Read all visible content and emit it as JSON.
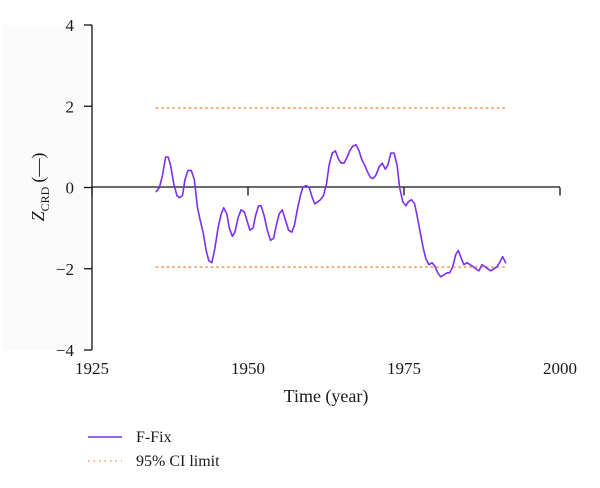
{
  "chart_data": {
    "type": "line",
    "xlabel": "Time (year)",
    "ylabel_main": "Z",
    "ylabel_sub": "CRD",
    "ylabel_unit": "(—)",
    "xlim": [
      1925,
      2000
    ],
    "ylim": [
      -4,
      4
    ],
    "xticks": [
      1925,
      1950,
      1975,
      2000
    ],
    "yticks": [
      4,
      2,
      0,
      -2,
      -4
    ],
    "grid": false,
    "legend_position": "bottom-left",
    "series": [
      {
        "name": "F-Fix",
        "color": "#7b2ff2",
        "style": "solid",
        "x": [
          1935.3,
          1935.8,
          1936.3,
          1936.8,
          1937.2,
          1937.6,
          1938.1,
          1938.6,
          1939.0,
          1939.5,
          1939.9,
          1940.4,
          1940.9,
          1941.4,
          1941.9,
          1942.4,
          1942.8,
          1943.3,
          1943.7,
          1944.2,
          1944.7,
          1945.2,
          1945.7,
          1946.1,
          1946.6,
          1947.0,
          1947.5,
          1947.9,
          1948.4,
          1948.9,
          1949.4,
          1949.9,
          1950.3,
          1950.8,
          1951.2,
          1951.7,
          1952.1,
          1952.6,
          1953.1,
          1953.6,
          1954.1,
          1954.5,
          1955.0,
          1955.5,
          1956.0,
          1956.5,
          1957.0,
          1957.4,
          1957.9,
          1958.4,
          1958.8,
          1959.3,
          1959.8,
          1960.3,
          1960.7,
          1961.2,
          1961.6,
          1962.1,
          1962.6,
          1963.0,
          1963.5,
          1964.0,
          1964.5,
          1964.9,
          1965.4,
          1965.8,
          1966.3,
          1966.8,
          1967.3,
          1967.8,
          1968.2,
          1968.7,
          1969.1,
          1969.6,
          1970.0,
          1970.5,
          1971.0,
          1971.5,
          1972.0,
          1972.4,
          1972.9,
          1973.4,
          1973.9,
          1974.3,
          1974.8,
          1975.3,
          1975.7,
          1976.2,
          1976.7,
          1977.1,
          1977.6,
          1978.1,
          1978.5,
          1979.0,
          1979.5,
          1980.0,
          1980.4,
          1980.9,
          1981.4,
          1981.9,
          1982.3,
          1982.8,
          1983.3,
          1983.7,
          1984.2,
          1984.6,
          1985.1,
          1985.6,
          1986.1,
          1986.5,
          1987.0,
          1987.5,
          1988.0,
          1988.4,
          1988.9,
          1989.4,
          1989.9,
          1990.3,
          1990.8,
          1991.3
        ],
        "y": [
          -0.1,
          0.0,
          0.3,
          0.75,
          0.75,
          0.55,
          0.1,
          -0.2,
          -0.25,
          -0.2,
          0.2,
          0.42,
          0.42,
          0.2,
          -0.5,
          -0.85,
          -1.1,
          -1.55,
          -1.8,
          -1.85,
          -1.5,
          -1.0,
          -0.65,
          -0.5,
          -0.65,
          -1.0,
          -1.2,
          -1.1,
          -0.75,
          -0.55,
          -0.6,
          -0.85,
          -1.05,
          -1.0,
          -0.7,
          -0.45,
          -0.45,
          -0.7,
          -1.05,
          -1.3,
          -1.25,
          -0.95,
          -0.65,
          -0.55,
          -0.8,
          -1.05,
          -1.1,
          -0.95,
          -0.55,
          -0.2,
          0.0,
          0.05,
          0.0,
          -0.25,
          -0.4,
          -0.35,
          -0.3,
          -0.2,
          0.1,
          0.55,
          0.85,
          0.9,
          0.7,
          0.6,
          0.6,
          0.72,
          0.9,
          1.02,
          1.05,
          0.9,
          0.7,
          0.55,
          0.4,
          0.25,
          0.22,
          0.3,
          0.5,
          0.6,
          0.45,
          0.55,
          0.85,
          0.85,
          0.55,
          0.0,
          -0.35,
          -0.45,
          -0.35,
          -0.3,
          -0.4,
          -0.7,
          -1.1,
          -1.5,
          -1.75,
          -1.9,
          -1.85,
          -1.95,
          -2.1,
          -2.2,
          -2.15,
          -2.1,
          -2.1,
          -1.95,
          -1.65,
          -1.55,
          -1.75,
          -1.9,
          -1.85,
          -1.9,
          -1.95,
          -2.0,
          -2.05,
          -1.9,
          -1.95,
          -2.0,
          -2.05,
          -2.0,
          -1.95,
          -1.85,
          -1.7,
          -1.85
        ]
      },
      {
        "name": "95% CI limit",
        "color": "#f0a05a",
        "style": "dotted",
        "x": [
          1935.3,
          1991.3
        ],
        "y": [
          1.96,
          1.96
        ]
      },
      {
        "name": "95% CI limit",
        "color": "#f0a05a",
        "style": "dotted",
        "x": [
          1935.3,
          1991.3
        ],
        "y": [
          -1.96,
          -1.96
        ]
      }
    ],
    "legend": [
      {
        "label": "F-Fix",
        "color": "#7b2ff2",
        "style": "solid"
      },
      {
        "label": "95% CI limit",
        "color": "#f0a05a",
        "style": "dotted"
      }
    ]
  }
}
